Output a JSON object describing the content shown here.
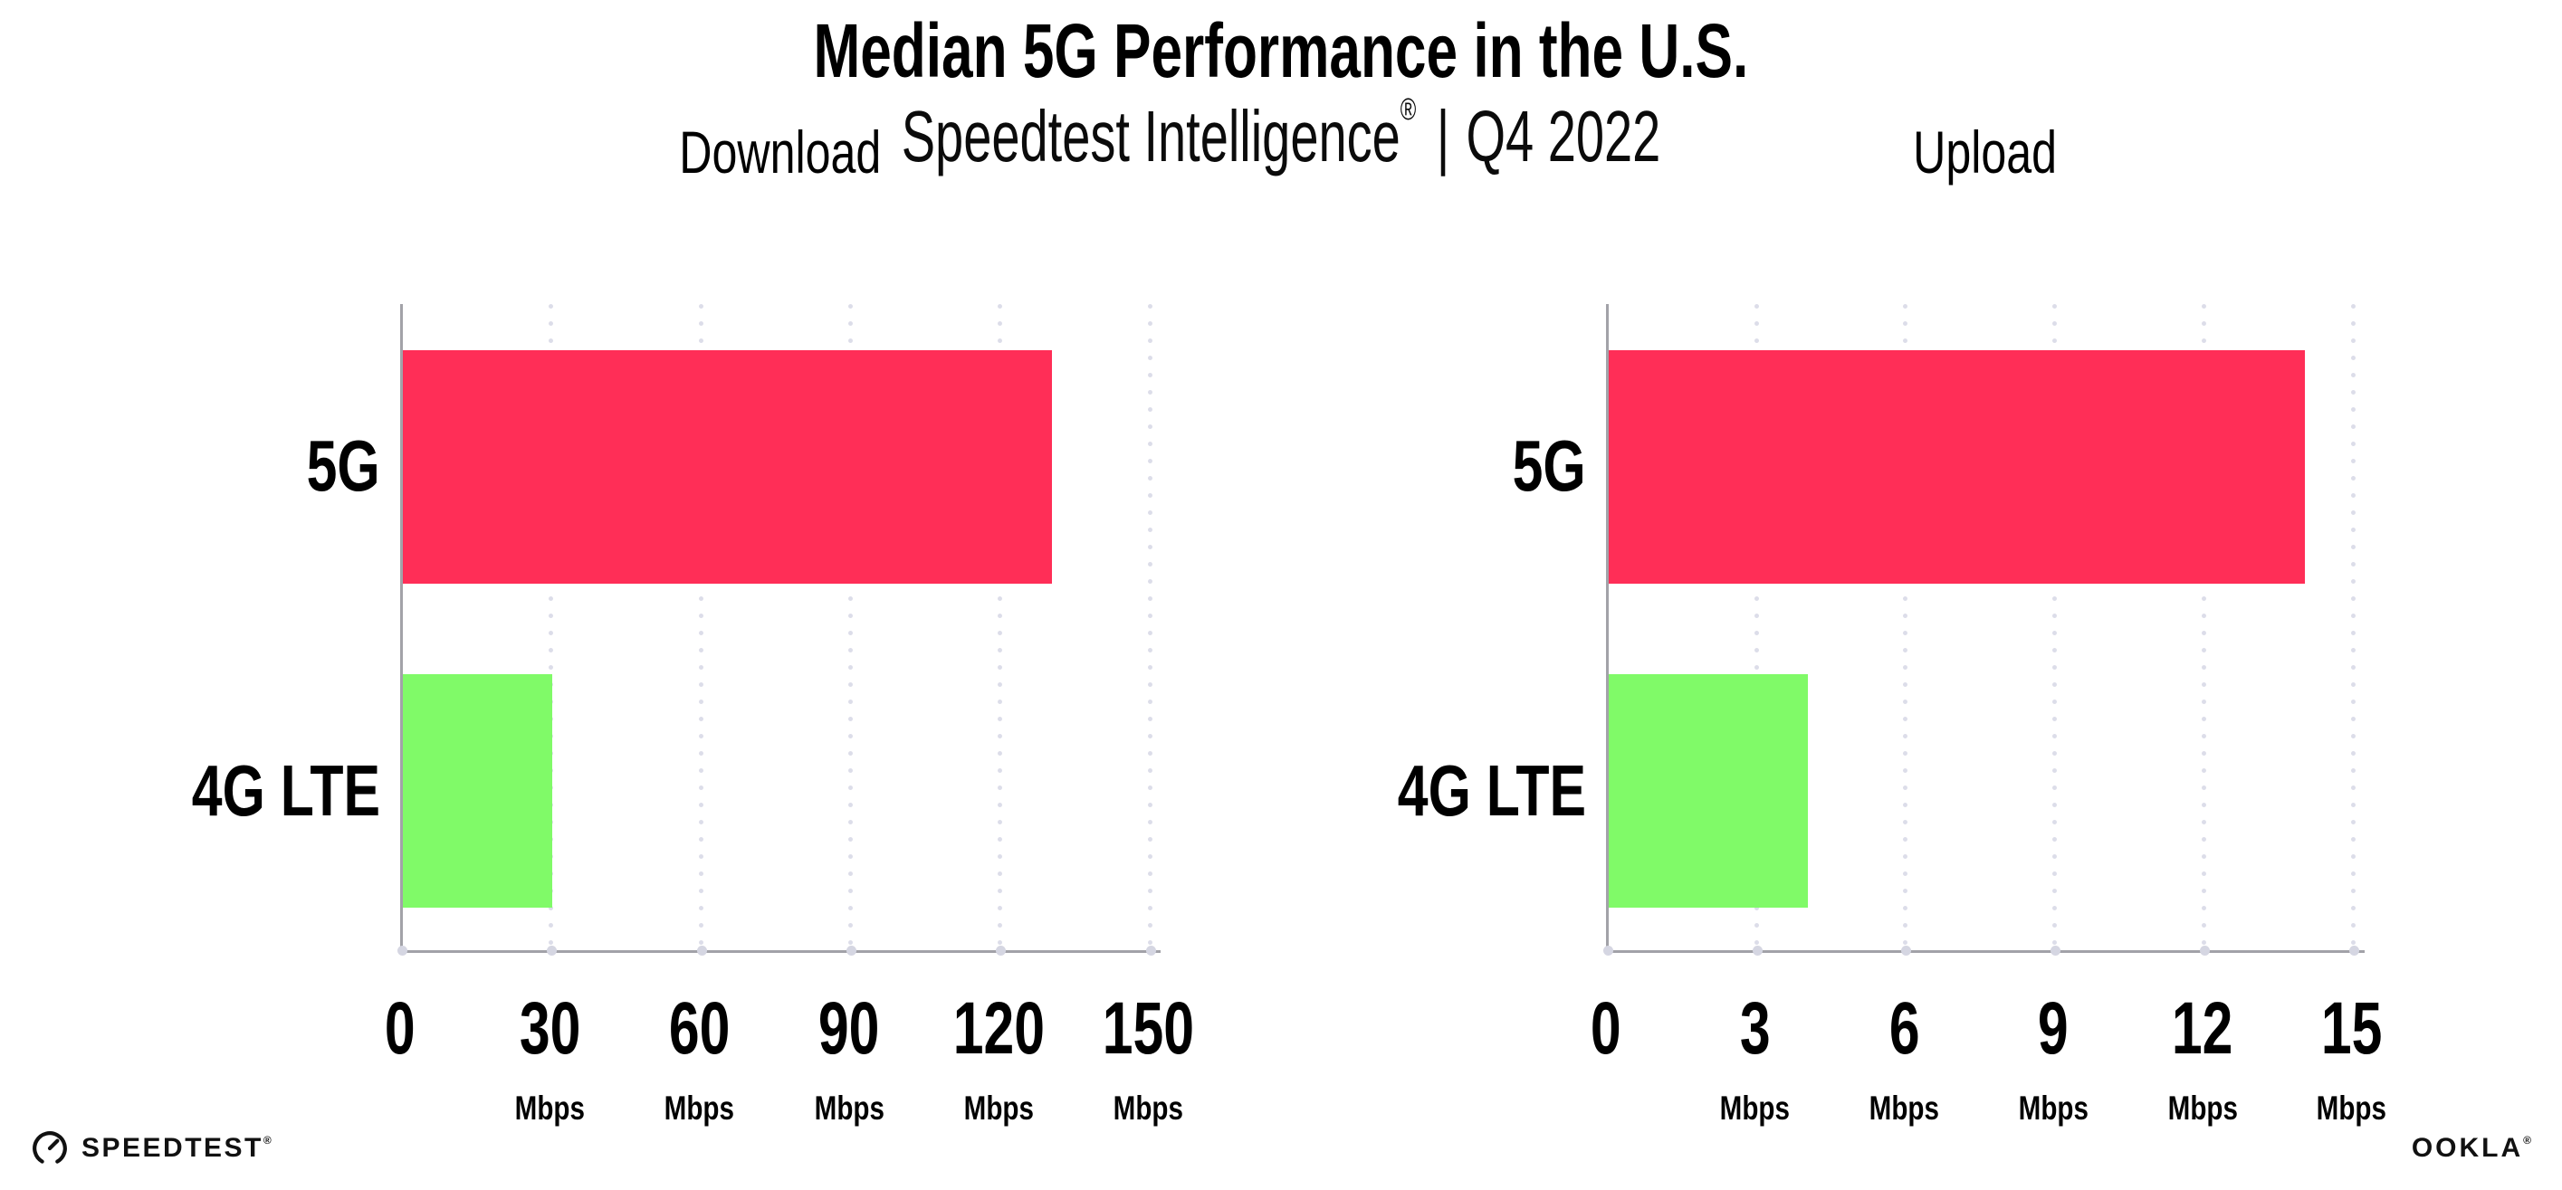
{
  "header": {
    "title": "Median 5G Performance in the U.S.",
    "subtitle_product": "Speedtest Intelligence",
    "subtitle_trademark": "®",
    "subtitle_divider": "|",
    "subtitle_quarter": "Q4 2022"
  },
  "chart_data": [
    {
      "type": "bar",
      "orientation": "horizontal",
      "title": "Download",
      "categories": [
        "5G",
        "4G LTE"
      ],
      "values": [
        130,
        30
      ],
      "unit": "Mbps",
      "xlim": [
        0,
        150
      ],
      "xticks": [
        0,
        30,
        60,
        90,
        120,
        150
      ],
      "xtick_unit_label": "Mbps",
      "grid": "vertical-dotted",
      "legend": "none",
      "bar_colors": [
        "#ff2e57",
        "#80fa68"
      ]
    },
    {
      "type": "bar",
      "orientation": "horizontal",
      "title": "Upload",
      "categories": [
        "5G",
        "4G LTE"
      ],
      "values": [
        14,
        4
      ],
      "unit": "Mbps",
      "xlim": [
        0,
        15
      ],
      "xticks": [
        0,
        3,
        6,
        9,
        12,
        15
      ],
      "xtick_unit_label": "Mbps",
      "grid": "vertical-dotted",
      "legend": "none",
      "bar_colors": [
        "#ff2e57",
        "#80fa68"
      ]
    }
  ],
  "footer": {
    "speedtest_label": "SPEEDTEST",
    "speedtest_trademark": "®",
    "ookla_label": "OOKLA",
    "ookla_trademark": "®"
  },
  "colors": {
    "bar_5g": "#ff2e57",
    "bar_4g_lte": "#80fa68",
    "axis": "#a2a2a8",
    "gridline_dots": "#dcdde9",
    "axis_tick_dots": "#d5d6e2",
    "text": "#000000",
    "background": "#ffffff"
  }
}
